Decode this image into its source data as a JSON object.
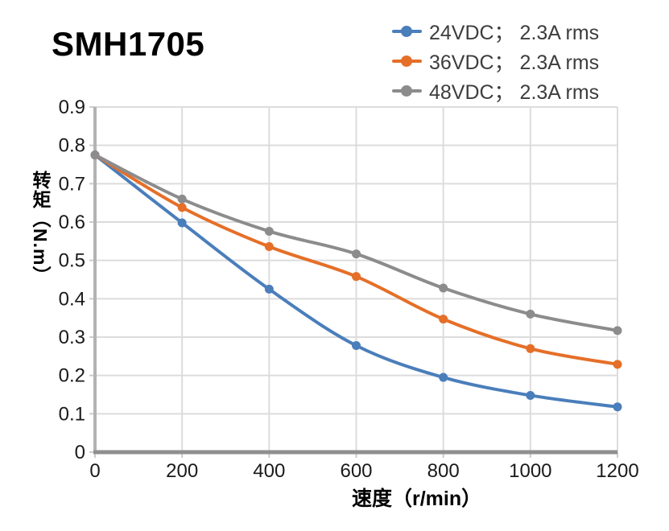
{
  "title": "SMH1705",
  "chart_data": {
    "type": "line",
    "title": "SMH1705",
    "xlabel": "速度（r/min）",
    "ylabel": "转矩（N.m）",
    "x": [
      0,
      200,
      400,
      600,
      800,
      1000,
      1200
    ],
    "xlim": [
      0,
      1200
    ],
    "ylim": [
      0,
      0.9
    ],
    "x_tick_labels": [
      "0",
      "200",
      "400",
      "600",
      "800",
      "1000",
      "1200"
    ],
    "y_tick_labels": [
      "0",
      "0.1",
      "0.2",
      "0.3",
      "0.4",
      "0.5",
      "0.6",
      "0.7",
      "0.8",
      "0.9"
    ],
    "grid": "on",
    "legend_position": "top-right",
    "line_style": "smooth",
    "marker": "circle",
    "series": [
      {
        "name": "24VDC； 2.3A rms",
        "color": "#4a7ebb",
        "values": [
          0.775,
          0.598,
          0.425,
          0.278,
          0.195,
          0.148,
          0.118
        ]
      },
      {
        "name": "36VDC； 2.3A rms",
        "color": "#e56f28",
        "values": [
          0.775,
          0.638,
          0.536,
          0.458,
          0.347,
          0.27,
          0.229
        ]
      },
      {
        "name": "48VDC； 2.3A rms",
        "color": "#8c8c8c",
        "values": [
          0.775,
          0.66,
          0.576,
          0.517,
          0.428,
          0.36,
          0.317
        ]
      }
    ]
  },
  "style": {
    "grid_color": "#dcdcdc",
    "y_axis_color": "#b3b3b3",
    "x_axis_color": "#8f8f8f",
    "tick_color": "#cccccc",
    "tick_label_color": "#1a1a1a",
    "legend_text_color": "#3d3d3d",
    "title_color": "#000000",
    "background": "#ffffff"
  }
}
